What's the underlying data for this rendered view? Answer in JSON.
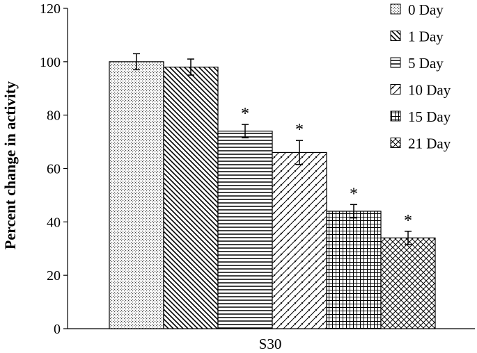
{
  "chart_data": {
    "type": "bar",
    "categories": [
      "S30"
    ],
    "series": [
      {
        "name": "0 Day",
        "values": [
          100
        ],
        "error": [
          3
        ],
        "significant": false,
        "pattern": "dots"
      },
      {
        "name": "1 Day",
        "values": [
          98
        ],
        "error": [
          3
        ],
        "significant": false,
        "pattern": "diag-down"
      },
      {
        "name": "5 Day",
        "values": [
          74
        ],
        "error": [
          2.5
        ],
        "significant": true,
        "pattern": "horizontal"
      },
      {
        "name": "10 Day",
        "values": [
          66
        ],
        "error": [
          4.5
        ],
        "significant": true,
        "pattern": "diag-up"
      },
      {
        "name": "15 Day",
        "values": [
          44
        ],
        "error": [
          2.5
        ],
        "significant": true,
        "pattern": "grid"
      },
      {
        "name": "21 Day",
        "values": [
          34
        ],
        "error": [
          2.5
        ],
        "significant": true,
        "pattern": "crosshatch"
      }
    ],
    "significance_marker": "*",
    "title": "",
    "xlabel": "",
    "ylabel": "Percent change in activity",
    "ylim": [
      0,
      120
    ],
    "yticks": [
      "0",
      "20",
      "40",
      "60",
      "80",
      "100",
      "120"
    ],
    "grid": false,
    "legend_position": "top-right"
  }
}
